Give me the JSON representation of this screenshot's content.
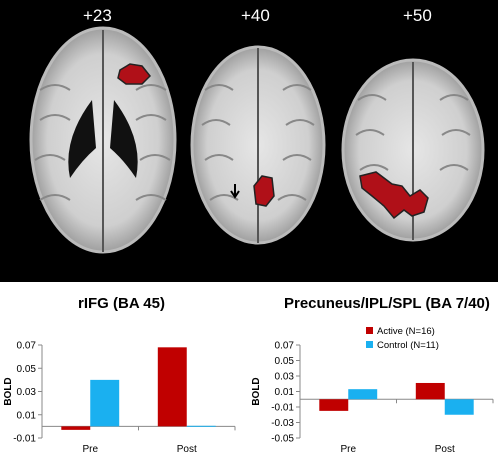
{
  "slices": [
    {
      "label": "+23"
    },
    {
      "label": "+40"
    },
    {
      "label": "+50"
    }
  ],
  "colors": {
    "active": "#c00000",
    "control": "#1ab0f0",
    "activation": "#b01018",
    "background": "#000000"
  },
  "chart_data": [
    {
      "type": "bar",
      "title": "rIFG (BA 45)",
      "ylabel": "BOLD",
      "categories": [
        "Pre",
        "Post"
      ],
      "ylim": [
        -0.01,
        0.07
      ],
      "yticks": [
        "0.07",
        "0.05",
        "0.03",
        "0.01",
        "-0.01"
      ],
      "series": [
        {
          "name": "Active",
          "values": [
            -0.003,
            0.068
          ]
        },
        {
          "name": "Control",
          "values": [
            0.04,
            0.0005
          ]
        }
      ],
      "grid": false,
      "legend": "none"
    },
    {
      "type": "bar",
      "title": "Precuneus/IPL/SPL (BA 7/40)",
      "ylabel": "BOLD",
      "categories": [
        "Pre",
        "Post"
      ],
      "ylim": [
        -0.05,
        0.07
      ],
      "yticks": [
        "0.07",
        "0.05",
        "0.03",
        "0.01",
        "-0.01",
        "-0.03",
        "-0.05"
      ],
      "series": [
        {
          "name": "Active  (N=16)",
          "values": [
            -0.015,
            0.021
          ]
        },
        {
          "name": "Control (N=11)",
          "values": [
            0.013,
            -0.02
          ]
        }
      ],
      "grid": false,
      "legend": "top-right"
    }
  ]
}
